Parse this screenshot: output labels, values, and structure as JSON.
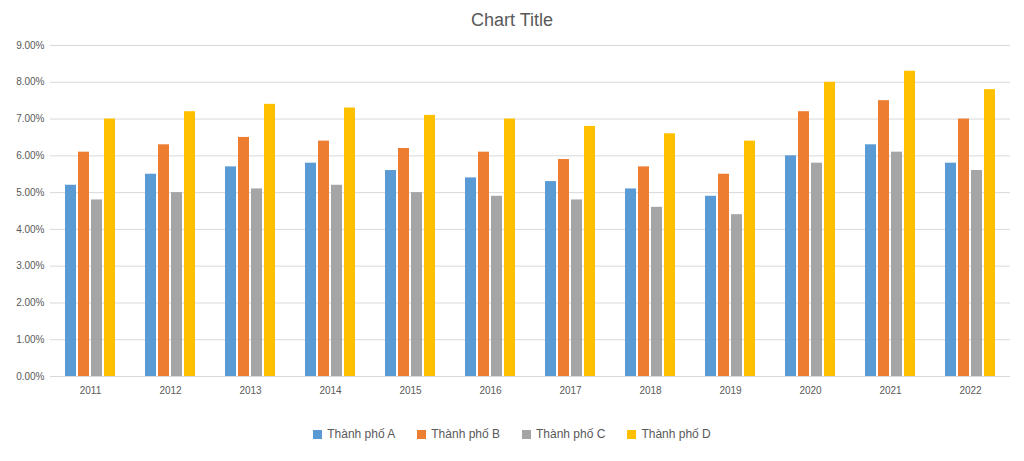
{
  "chart_data": {
    "type": "bar",
    "title": "Chart Title",
    "categories": [
      "2011",
      "2012",
      "2013",
      "2014",
      "2015",
      "2016",
      "2017",
      "2018",
      "2019",
      "2020",
      "2021",
      "2022"
    ],
    "series": [
      {
        "name": "Thành phố A",
        "color": "#5b9bd5",
        "values": [
          5.2,
          5.5,
          5.7,
          5.8,
          5.6,
          5.4,
          5.3,
          5.1,
          4.9,
          6.0,
          6.3,
          5.8
        ]
      },
      {
        "name": "Thành phố B",
        "color": "#ed7d31",
        "values": [
          6.1,
          6.3,
          6.5,
          6.4,
          6.2,
          6.1,
          5.9,
          5.7,
          5.5,
          7.2,
          7.5,
          7.0
        ]
      },
      {
        "name": "Thành phố C",
        "color": "#a5a5a5",
        "values": [
          4.8,
          5.0,
          5.1,
          5.2,
          5.0,
          4.9,
          4.8,
          4.6,
          4.4,
          5.8,
          6.1,
          5.6
        ]
      },
      {
        "name": "Thành phố D",
        "color": "#ffc000",
        "values": [
          7.0,
          7.2,
          7.4,
          7.3,
          7.1,
          7.0,
          6.8,
          6.6,
          6.4,
          8.0,
          8.3,
          7.8
        ]
      }
    ],
    "ylim": [
      0,
      9
    ],
    "yticks": [
      {
        "value": 0,
        "label": "0.00%"
      },
      {
        "value": 1,
        "label": "1.00%"
      },
      {
        "value": 2,
        "label": "2.00%"
      },
      {
        "value": 3,
        "label": "3.00%"
      },
      {
        "value": 4,
        "label": "4.00%"
      },
      {
        "value": 5,
        "label": "5.00%"
      },
      {
        "value": 6,
        "label": "6.00%"
      },
      {
        "value": 7,
        "label": "7.00%"
      },
      {
        "value": 8,
        "label": "8.00%"
      },
      {
        "value": 9,
        "label": "9.00%"
      }
    ],
    "grid": true,
    "legend": "bottom"
  }
}
